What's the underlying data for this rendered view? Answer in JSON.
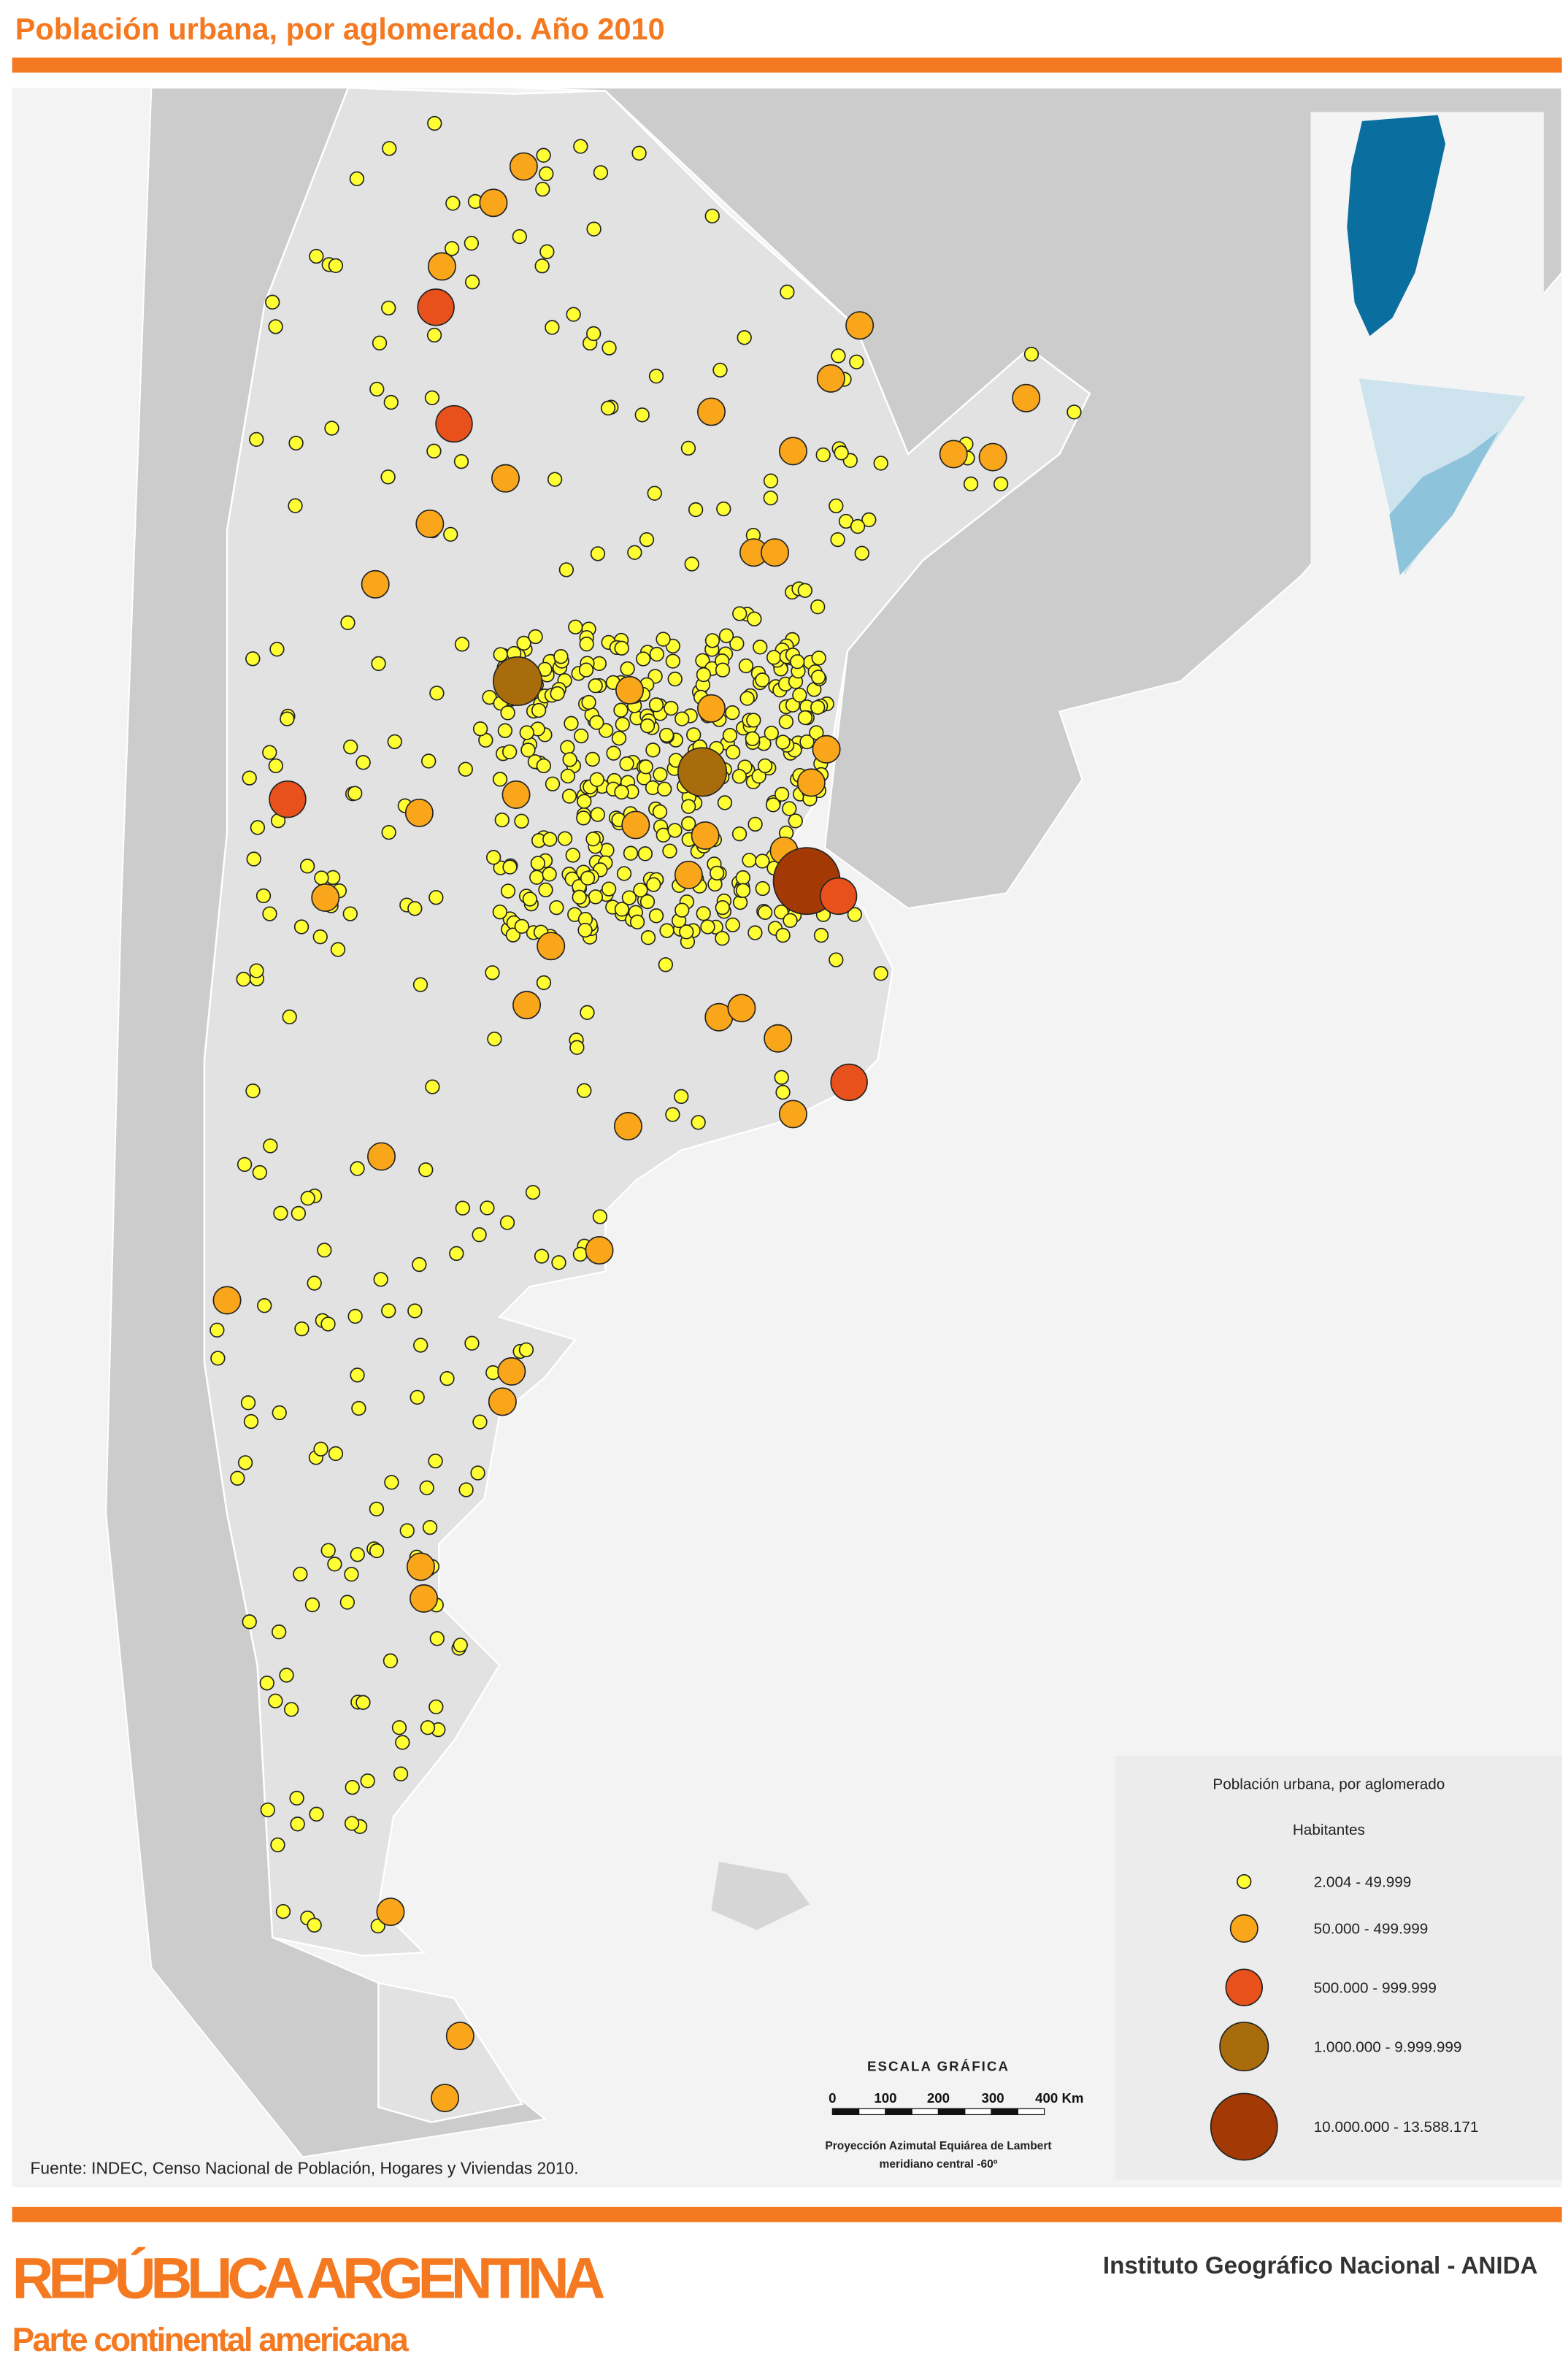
{
  "header": {
    "title": "Población urbana, por aglomerado. Año 2010"
  },
  "legend": {
    "title": "Población urbana, por aglomerado",
    "subtitle": "Habitantes",
    "classes": [
      "2.004 - 49.999",
      "50.000 - 499.999",
      "500.000 - 999.999",
      "1.000.000 - 9.999.999",
      "10.000.000 - 13.588.171"
    ]
  },
  "scale": {
    "title": "ESCALA GRÁFICA",
    "labels": [
      "0",
      "100",
      "200",
      "300",
      "400 Km"
    ],
    "projection": "Proyección Azimutal Equiárea de Lambert",
    "meridian": "meridiano central -60º"
  },
  "source": "Fuente: INDEC, Censo Nacional de Población, Hogares y Viviendas 2010.",
  "footer": {
    "title": "REPÚBLICA ARGENTINA",
    "subtitle": "Parte continental americana",
    "publisher": "Instituto Geográfico Nacional - ANIDA"
  }
}
